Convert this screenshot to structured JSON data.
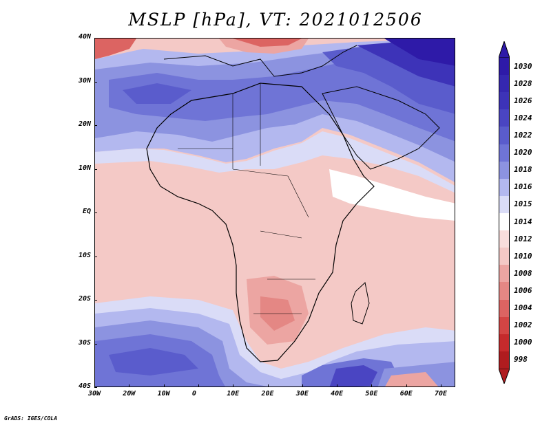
{
  "title": "MSLP [hPa], VT: 2021012506",
  "lat_labels": [
    "40N",
    "30N",
    "20N",
    "10N",
    "EQ",
    "10S",
    "20S",
    "30S",
    "40S"
  ],
  "lon_labels": [
    "30W",
    "20W",
    "10W",
    "0",
    "10E",
    "20E",
    "30E",
    "40E",
    "50E",
    "60E",
    "70E"
  ],
  "colorbar": {
    "levels": [
      "1030",
      "1028",
      "1026",
      "1024",
      "1022",
      "1020",
      "1018",
      "1016",
      "1015",
      "1014",
      "1012",
      "1010",
      "1008",
      "1006",
      "1004",
      "1002",
      "1000",
      "998"
    ],
    "colors": {
      "c1030": "#2e1aa8",
      "c1028": "#3527b0",
      "c1026": "#3d33b8",
      "c1024": "#4a45c2",
      "c1022": "#5a5ccc",
      "c1020": "#6f74d6",
      "c1018": "#8c93e0",
      "c1016": "#b3b8ef",
      "c1015": "#dadcf7",
      "c1014": "#ffffff",
      "c1012": "#f9dedc",
      "c1010": "#f4c9c6",
      "c1008": "#eca5a2",
      "c1006": "#e48784",
      "c1004": "#dc6462",
      "c1002": "#d34544",
      "c1000": "#c52a2c",
      "c998": "#b01c1f"
    }
  },
  "credit": "GrADS: IGES/COLA"
}
